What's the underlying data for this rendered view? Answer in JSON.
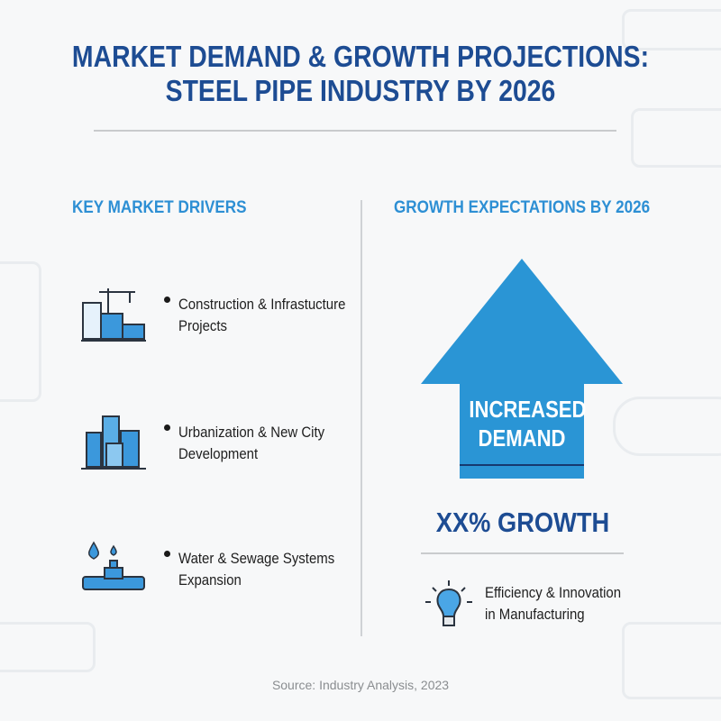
{
  "title": {
    "line1": "MARKET DEMAND & GROWTH PROJECTIONS:",
    "line2": "STEEL PIPE INDUSTRY BY 2026"
  },
  "left": {
    "heading": "KEY MARKET DRIVERS",
    "items": [
      {
        "icon": "construction-crane-building-icon",
        "line1": "Construction & Infrastucture",
        "line2": "Projects"
      },
      {
        "icon": "city-buildings-icon",
        "line1": "Urbanization & New City",
        "line2": "Development"
      },
      {
        "icon": "water-pipe-valve-icon",
        "line1": "Water & Sewage Systems",
        "line2": "Expansion"
      }
    ]
  },
  "right": {
    "heading": "GROWTH EXPECTATIONS BY 2026",
    "arrow": {
      "line1": "INCREASED",
      "line2": "DEMAND",
      "color": "#2a95d5"
    },
    "growth": "XX% GROWTH",
    "innovation": {
      "icon": "lightbulb-icon",
      "line1": "Efficiency & Innovation",
      "line2": "in Manufacturing"
    }
  },
  "source": "Source: Industry Analysis, 2023",
  "colors": {
    "title": "#1d4c93",
    "heading": "#2d8fd4",
    "accent": "#2a95d5"
  }
}
